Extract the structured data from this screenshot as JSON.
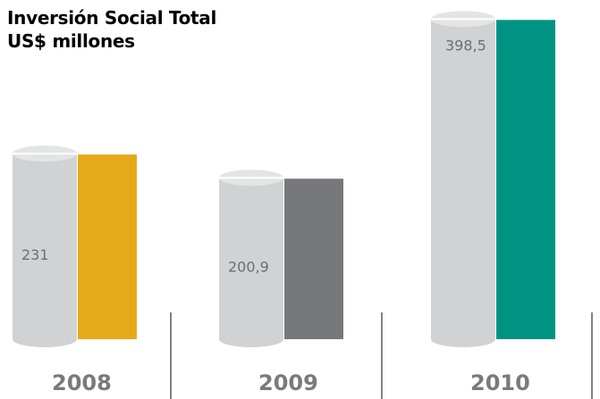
{
  "title_line1": "Inversión Social Total",
  "title_line2": "US$ millones",
  "colors": {
    "cylinder": "#d1d2d3",
    "cylinder_top": "#e3e4e5",
    "value_label": "#6d6e71",
    "year_label": "#7a7a7a",
    "divider": "#808285",
    "bar_2008": "#e6a919",
    "bar_2009": "#77787b",
    "bar_2010": "#009384"
  },
  "chart_data": {
    "type": "bar",
    "title": "Inversión Social Total US$ millones",
    "categories": [
      "2008",
      "2009",
      "2010"
    ],
    "values": [
      231,
      200.9,
      398.5
    ],
    "value_labels": [
      "231",
      "200,9",
      "398,5"
    ],
    "ylim": [
      0,
      420
    ],
    "grid": false,
    "legend": "none"
  }
}
